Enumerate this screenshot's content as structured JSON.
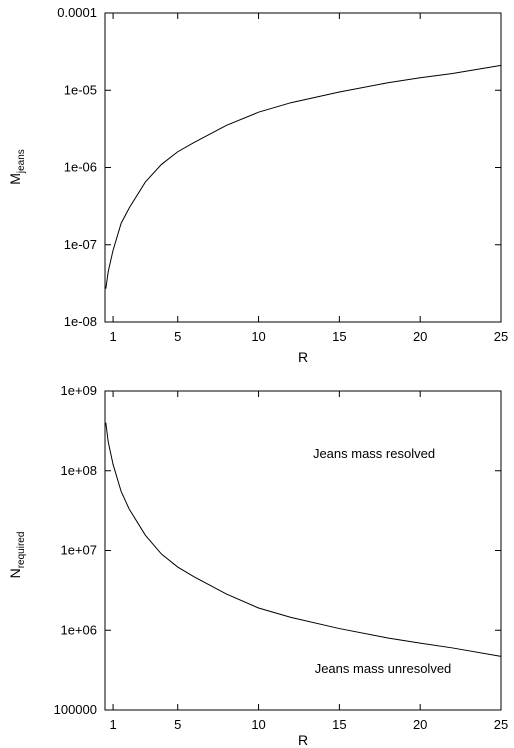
{
  "chart_data": [
    {
      "type": "line",
      "title": "",
      "xlabel": "R",
      "ylabel": "M",
      "ylabel_sub": "jeans",
      "yscale": "log",
      "xlim": [
        0.5,
        25
      ],
      "ylim": [
        1e-08,
        0.0001
      ],
      "x_ticks": [
        1,
        5,
        10,
        15,
        20,
        25
      ],
      "y_ticks": [
        1e-08,
        1e-07,
        1e-06,
        1e-05,
        0.0001
      ],
      "y_tick_labels": [
        "1e-08",
        "1e-07",
        "1e-06",
        "1e-05",
        "0.0001"
      ],
      "grid": false,
      "series": [
        {
          "x": [
            0.55,
            0.7,
            1,
            1.5,
            2,
            3,
            4,
            5,
            6,
            8,
            10,
            12,
            15,
            18,
            20,
            22,
            25
          ],
          "y": [
            2.7e-08,
            4.5e-08,
            8.5e-08,
            1.9e-07,
            3e-07,
            6.5e-07,
            1.1e-06,
            1.6e-06,
            2.1e-06,
            3.5e-06,
            5.2e-06,
            6.9e-06,
            9.5e-06,
            1.25e-05,
            1.45e-05,
            1.65e-05,
            2.1e-05
          ]
        }
      ]
    },
    {
      "type": "line",
      "title": "",
      "xlabel": "R",
      "ylabel": "N",
      "ylabel_sub": "required",
      "yscale": "log",
      "xlim": [
        0.5,
        25
      ],
      "ylim": [
        100000,
        1000000000
      ],
      "x_ticks": [
        1,
        5,
        10,
        15,
        20,
        25
      ],
      "y_ticks": [
        100000,
        1000000,
        10000000,
        100000000,
        1000000000
      ],
      "y_tick_labels": [
        "100000",
        "1e+06",
        "1e+07",
        "1e+08",
        "1e+09"
      ],
      "grid": false,
      "annotations": [
        "Jeans mass resolved",
        "Jeans mass unresolved"
      ],
      "series": [
        {
          "x": [
            0.55,
            0.7,
            1,
            1.5,
            2,
            3,
            4,
            5,
            6,
            8,
            10,
            12,
            15,
            18,
            20,
            22,
            25
          ],
          "y": [
            400000000,
            230000000,
            120000000,
            55000000,
            33000000,
            15500000,
            9000000,
            6200000,
            4700000,
            2850000,
            1900000,
            1450000,
            1050000,
            800000,
            690000,
            600000,
            470000
          ]
        }
      ]
    }
  ]
}
